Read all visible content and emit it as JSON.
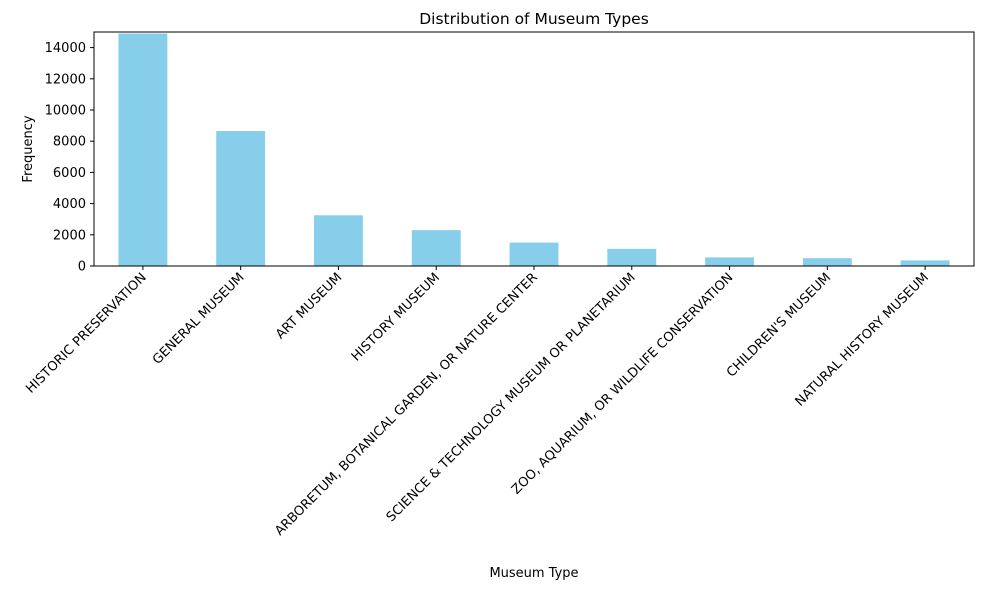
{
  "chart_data": {
    "type": "bar",
    "title": "Distribution of Museum Types",
    "xlabel": "Museum Type",
    "ylabel": "Frequency",
    "categories": [
      "HISTORIC PRESERVATION",
      "GENERAL MUSEUM",
      "ART MUSEUM",
      "HISTORY MUSEUM",
      "ARBORETUM, BOTANICAL GARDEN, OR NATURE CENTER",
      "SCIENCE & TECHNOLOGY MUSEUM OR PLANETARIUM",
      "ZOO, AQUARIUM, OR WILDLIFE CONSERVATION",
      "CHILDREN'S MUSEUM",
      "NATURAL HISTORY MUSEUM"
    ],
    "values": [
      14900,
      8650,
      3250,
      2300,
      1500,
      1100,
      550,
      500,
      360
    ],
    "ylim": [
      0,
      15000
    ],
    "yticks": [
      0,
      2000,
      4000,
      6000,
      8000,
      10000,
      12000,
      14000
    ],
    "grid": false,
    "bar_color": "#87ceeb"
  }
}
